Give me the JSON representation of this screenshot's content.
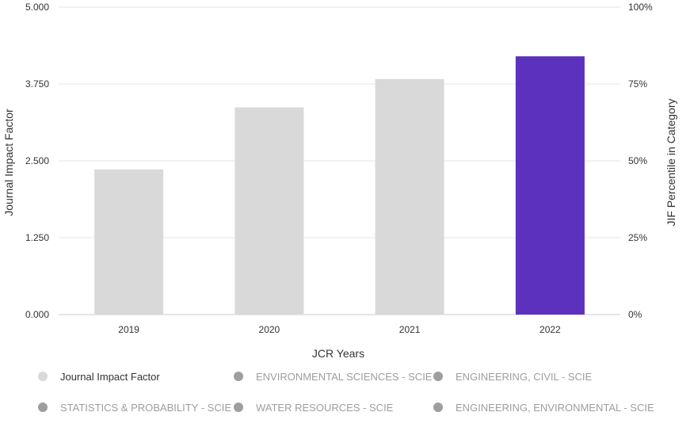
{
  "chart_data": {
    "type": "bar",
    "categories": [
      "2019",
      "2020",
      "2021",
      "2022"
    ],
    "values": [
      2.36,
      3.37,
      3.83,
      4.2
    ],
    "highlight_category": "2022",
    "colors": {
      "default": "#d9d9d9",
      "highlight": "#5b31be"
    },
    "ylim": [
      0,
      5
    ],
    "y_ticks": [
      "0.000",
      "1.250",
      "2.500",
      "3.750",
      "5.000"
    ],
    "y2_ticks": [
      "0%",
      "25%",
      "50%",
      "75%",
      "100%"
    ],
    "y2lim": [
      0,
      100
    ],
    "xlabel": "JCR Years",
    "ylabel": "Journal Impact Factor",
    "y2label": "JIF Percentile in Category",
    "grid": true,
    "legend_position": "bottom"
  },
  "legend": {
    "items": [
      {
        "label": "Journal Impact Factor",
        "color": "#d9d9d9",
        "state": "active"
      },
      {
        "label": "ENVIRONMENTAL SCIENCES - SCIE",
        "color": "#9e9e9e",
        "state": "inactive"
      },
      {
        "label": "ENGINEERING, CIVIL - SCIE",
        "color": "#9e9e9e",
        "state": "inactive"
      },
      {
        "label": "STATISTICS & PROBABILITY - SCIE",
        "color": "#9e9e9e",
        "state": "inactive"
      },
      {
        "label": "WATER RESOURCES - SCIE",
        "color": "#9e9e9e",
        "state": "inactive"
      },
      {
        "label": "ENGINEERING, ENVIRONMENTAL - SCIE",
        "color": "#9e9e9e",
        "state": "inactive"
      }
    ]
  }
}
